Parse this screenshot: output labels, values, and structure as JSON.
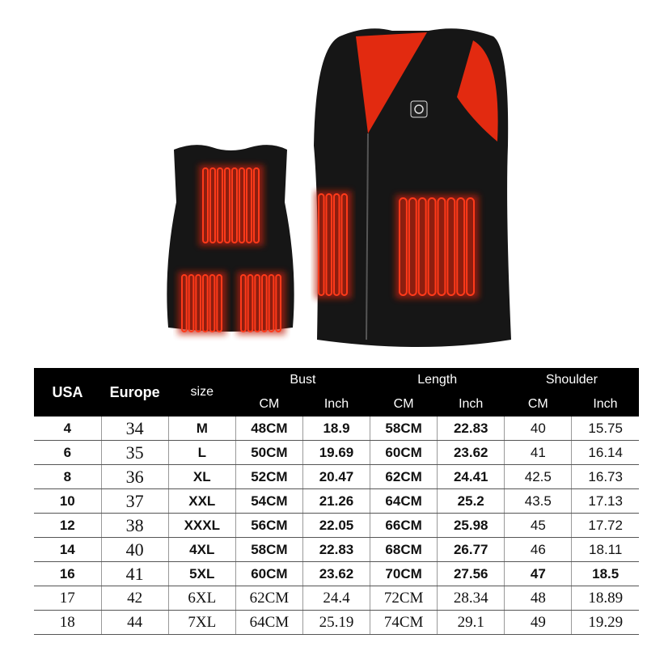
{
  "colors": {
    "vest": "#151515",
    "heat": "#ff3a1a",
    "header_bg": "#000000"
  },
  "table": {
    "headers": {
      "usa": "USA",
      "europe": "Europe",
      "size": "size",
      "bust": "Bust",
      "length": "Length",
      "shoulder": "Shoulder",
      "cm": "CM",
      "inch": "Inch"
    },
    "rows": [
      [
        "4",
        "34",
        "M",
        "48CM",
        "18.9",
        "58CM",
        "22.83",
        "40",
        "15.75"
      ],
      [
        "6",
        "35",
        "L",
        "50CM",
        "19.69",
        "60CM",
        "23.62",
        "41",
        "16.14"
      ],
      [
        "8",
        "36",
        "XL",
        "52CM",
        "20.47",
        "62CM",
        "24.41",
        "42.5",
        "16.73"
      ],
      [
        "10",
        "37",
        "XXL",
        "54CM",
        "21.26",
        "64CM",
        "25.2",
        "43.5",
        "17.13"
      ],
      [
        "12",
        "38",
        "XXXL",
        "56CM",
        "22.05",
        "66CM",
        "25.98",
        "45",
        "17.72"
      ],
      [
        "14",
        "40",
        "4XL",
        "58CM",
        "22.83",
        "68CM",
        "26.77",
        "46",
        "18.11"
      ],
      [
        "16",
        "41",
        "5XL",
        "60CM",
        "23.62",
        "70CM",
        "27.56",
        "47",
        "18.5"
      ],
      [
        "17",
        "42",
        "6XL",
        "62CM",
        "24.4",
        "72CM",
        "28.34",
        "48",
        "18.89"
      ],
      [
        "18",
        "44",
        "7XL",
        "64CM",
        "25.19",
        "74CM",
        "29.1",
        "49",
        "19.29"
      ]
    ]
  }
}
